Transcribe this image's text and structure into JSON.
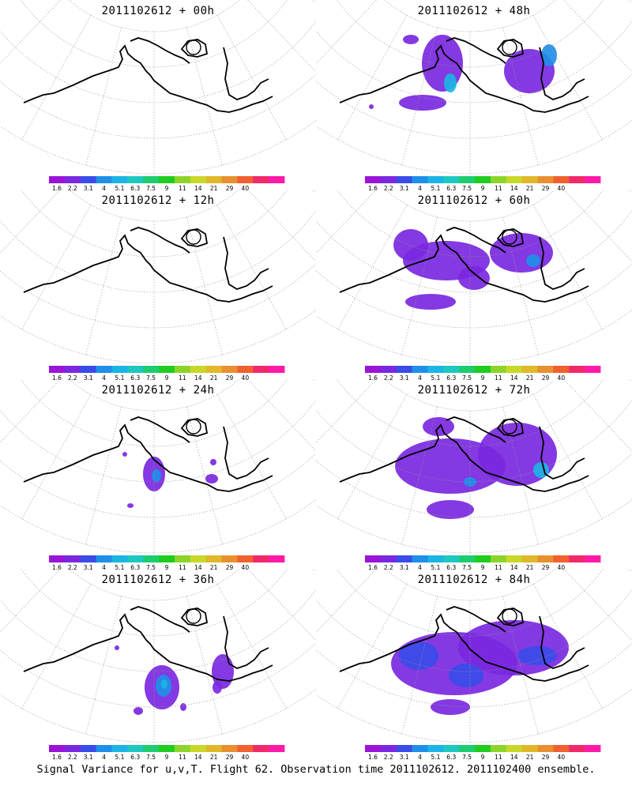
{
  "colorbar": {
    "levels": [
      "1.6",
      "2.2",
      "3.1",
      "4",
      "5.1",
      "6.3",
      "7.5",
      "9",
      "11",
      "14",
      "21",
      "29",
      "40"
    ],
    "colors": [
      "#9a14d8",
      "#7a28e0",
      "#3a4ce8",
      "#1f8fe8",
      "#1cb4e4",
      "#1ec8c0",
      "#1ecc70",
      "#1fcc1f",
      "#8cd42a",
      "#c8d828",
      "#e0b82a",
      "#e89030",
      "#f06030",
      "#f02a6a",
      "#ff1aa8"
    ]
  },
  "panels": [
    {
      "title": "2011102612 + 00h",
      "blobs": []
    },
    {
      "title": "2011102612 + 48h",
      "blobs": [
        {
          "cx": 160,
          "cy": 50,
          "rx": 26,
          "ry": 36,
          "level": 1
        },
        {
          "cx": 170,
          "cy": 75,
          "rx": 8,
          "ry": 12,
          "level": 4
        },
        {
          "cx": 270,
          "cy": 60,
          "rx": 32,
          "ry": 28,
          "level": 1
        },
        {
          "cx": 295,
          "cy": 40,
          "rx": 10,
          "ry": 14,
          "level": 3
        },
        {
          "cx": 135,
          "cy": 100,
          "rx": 30,
          "ry": 10,
          "level": 1
        },
        {
          "cx": 120,
          "cy": 20,
          "rx": 10,
          "ry": 6,
          "level": 1
        },
        {
          "cx": 70,
          "cy": 105,
          "rx": 3,
          "ry": 3,
          "level": 1
        }
      ]
    },
    {
      "title": "2011102612 + 12h",
      "blobs": []
    },
    {
      "title": "2011102612 + 60h",
      "blobs": [
        {
          "cx": 120,
          "cy": 40,
          "rx": 22,
          "ry": 20,
          "level": 1
        },
        {
          "cx": 165,
          "cy": 60,
          "rx": 55,
          "ry": 25,
          "level": 1
        },
        {
          "cx": 260,
          "cy": 50,
          "rx": 40,
          "ry": 25,
          "level": 1
        },
        {
          "cx": 275,
          "cy": 60,
          "rx": 9,
          "ry": 8,
          "level": 3
        },
        {
          "cx": 200,
          "cy": 82,
          "rx": 20,
          "ry": 15,
          "level": 1
        },
        {
          "cx": 145,
          "cy": 112,
          "rx": 32,
          "ry": 10,
          "level": 1
        }
      ]
    },
    {
      "title": "2011102612 + 24h",
      "blobs": [
        {
          "cx": 195,
          "cy": 90,
          "rx": 14,
          "ry": 22,
          "level": 1
        },
        {
          "cx": 198,
          "cy": 92,
          "rx": 6,
          "ry": 8,
          "level": 3
        },
        {
          "cx": 268,
          "cy": 96,
          "rx": 8,
          "ry": 6,
          "level": 1
        },
        {
          "cx": 270,
          "cy": 75,
          "rx": 4,
          "ry": 4,
          "level": 1
        },
        {
          "cx": 158,
          "cy": 65,
          "rx": 3,
          "ry": 3,
          "level": 1
        },
        {
          "cx": 165,
          "cy": 130,
          "rx": 4,
          "ry": 3,
          "level": 1
        }
      ]
    },
    {
      "title": "2011102612 + 72h",
      "blobs": [
        {
          "cx": 170,
          "cy": 80,
          "rx": 70,
          "ry": 35,
          "level": 1
        },
        {
          "cx": 255,
          "cy": 65,
          "rx": 50,
          "ry": 40,
          "level": 1
        },
        {
          "cx": 285,
          "cy": 85,
          "rx": 10,
          "ry": 10,
          "level": 4
        },
        {
          "cx": 195,
          "cy": 100,
          "rx": 8,
          "ry": 6,
          "level": 3
        },
        {
          "cx": 170,
          "cy": 135,
          "rx": 30,
          "ry": 12,
          "level": 1
        },
        {
          "cx": 155,
          "cy": 30,
          "rx": 20,
          "ry": 12,
          "level": 1
        }
      ]
    },
    {
      "title": "2011102612 + 36h",
      "blobs": [
        {
          "cx": 205,
          "cy": 120,
          "rx": 22,
          "ry": 28,
          "level": 1
        },
        {
          "cx": 207,
          "cy": 118,
          "rx": 10,
          "ry": 14,
          "level": 3
        },
        {
          "cx": 208,
          "cy": 116,
          "rx": 4,
          "ry": 6,
          "level": 4
        },
        {
          "cx": 282,
          "cy": 100,
          "rx": 14,
          "ry": 22,
          "level": 1
        },
        {
          "cx": 275,
          "cy": 120,
          "rx": 6,
          "ry": 8,
          "level": 1
        },
        {
          "cx": 175,
          "cy": 150,
          "rx": 6,
          "ry": 5,
          "level": 1
        },
        {
          "cx": 232,
          "cy": 145,
          "rx": 4,
          "ry": 5,
          "level": 1
        },
        {
          "cx": 148,
          "cy": 70,
          "rx": 3,
          "ry": 3,
          "level": 1
        }
      ]
    },
    {
      "title": "2011102612 + 84h",
      "blobs": [
        {
          "cx": 175,
          "cy": 90,
          "rx": 80,
          "ry": 40,
          "level": 1
        },
        {
          "cx": 250,
          "cy": 70,
          "rx": 70,
          "ry": 35,
          "level": 1
        },
        {
          "cx": 130,
          "cy": 80,
          "rx": 25,
          "ry": 18,
          "level": 2
        },
        {
          "cx": 190,
          "cy": 105,
          "rx": 22,
          "ry": 15,
          "level": 2
        },
        {
          "cx": 280,
          "cy": 80,
          "rx": 25,
          "ry": 12,
          "level": 2
        },
        {
          "cx": 170,
          "cy": 145,
          "rx": 25,
          "ry": 10,
          "level": 1
        }
      ]
    }
  ],
  "caption": "Signal Variance for u,v,T. Flight 62. Observation time 2011102612. 2011102400 ensemble."
}
